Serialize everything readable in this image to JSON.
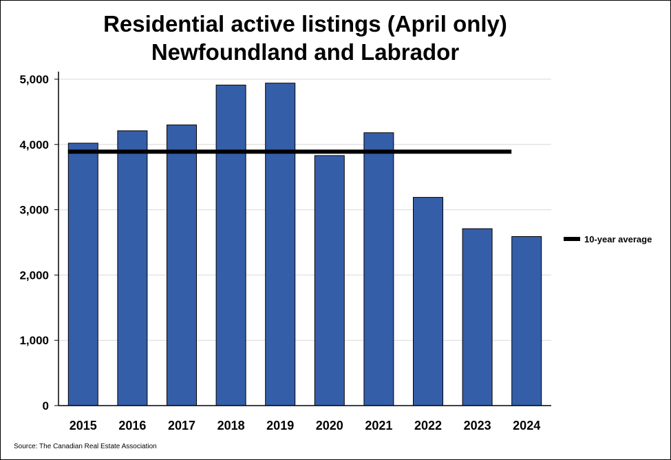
{
  "chart_data": {
    "type": "bar",
    "title_line1": "Residential active listings (April only)",
    "title_line2": "Newfoundland and Labrador",
    "categories": [
      "2015",
      "2016",
      "2017",
      "2018",
      "2019",
      "2020",
      "2021",
      "2022",
      "2023",
      "2024"
    ],
    "values": [
      4020,
      4210,
      4300,
      4910,
      4940,
      3830,
      4180,
      3190,
      2710,
      2590
    ],
    "reference_line": {
      "name": "10-year average",
      "value": 3890
    },
    "ylim": [
      0,
      5000
    ],
    "yticks": [
      0,
      1000,
      2000,
      3000,
      4000,
      5000
    ],
    "ytick_labels": [
      "0",
      "1,000",
      "2,000",
      "3,000",
      "4,000",
      "5,000"
    ],
    "xlabel": "",
    "ylabel": "",
    "grid": true,
    "legend_position": "right",
    "colors": {
      "bar": "#355ea9",
      "bar_edge": "#000000",
      "average": "#000000",
      "grid": "#d9d9d9"
    }
  },
  "source": "Source: The Canadian Real Estate Association"
}
